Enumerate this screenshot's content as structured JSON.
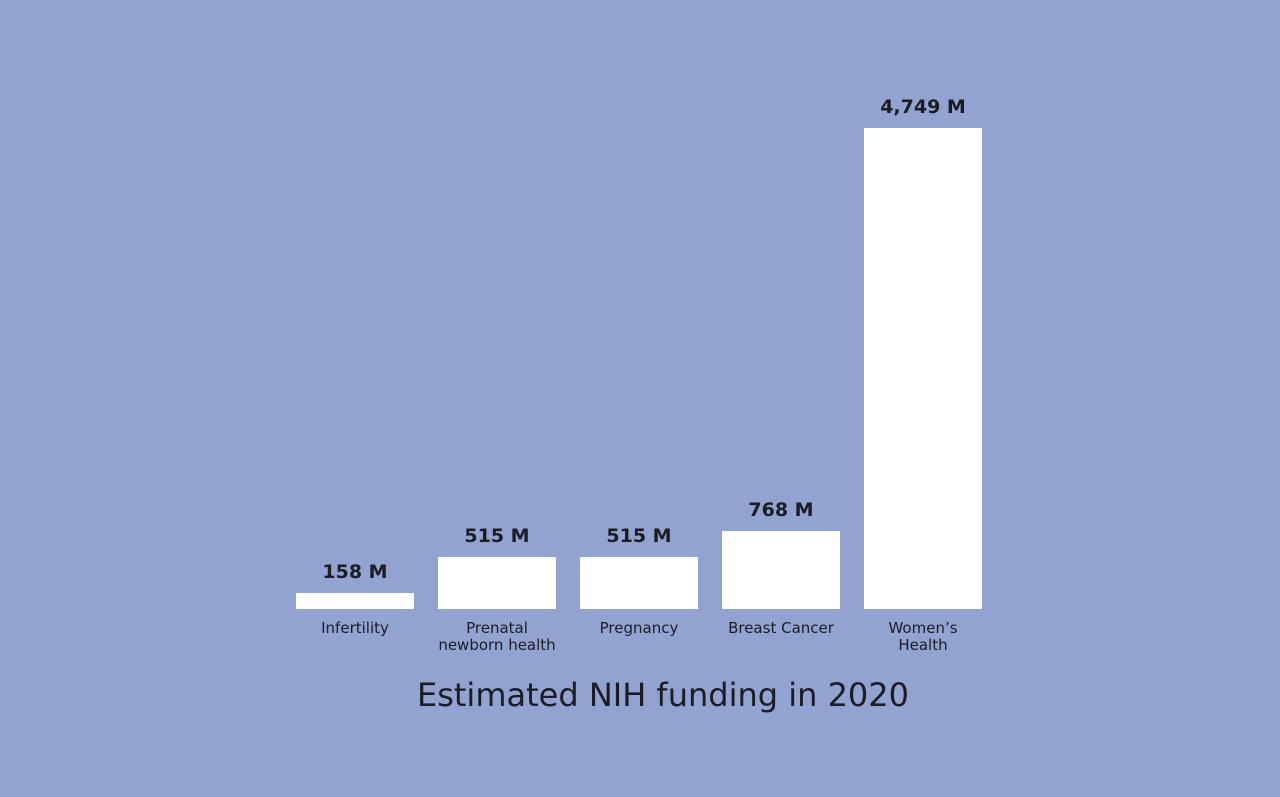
{
  "chart_data": {
    "type": "bar",
    "title": "Estimated NIH funding in 2020",
    "categories": [
      "Infertility",
      "Prenatal\nnewborn health",
      "Pregnancy",
      "Breast Cancer",
      "Women’s\nHealth"
    ],
    "values": [
      158,
      515,
      515,
      768,
      4749
    ],
    "value_labels": [
      "158 M",
      "515 M",
      "515 M",
      "768 M",
      "4,749 M"
    ],
    "color": "#ffffff"
  }
}
